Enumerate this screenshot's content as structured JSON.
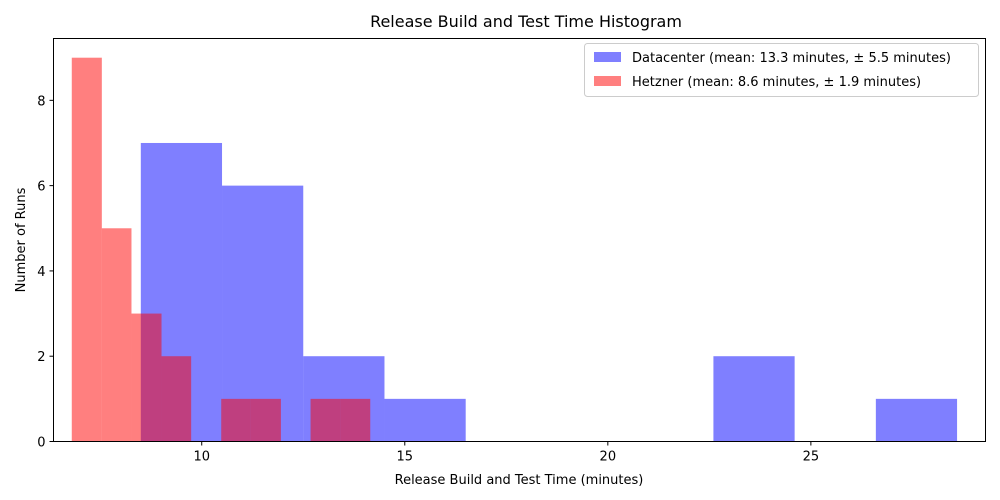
{
  "chart_data": {
    "type": "bar",
    "title": "Release Build and Test Time Histogram",
    "xlabel": "Release Build and Test Time (minutes)",
    "ylabel": "Number of Runs",
    "xlim": [
      6.35,
      29.3
    ],
    "ylim": [
      0,
      9.45
    ],
    "xticks": [
      10,
      15,
      20,
      25
    ],
    "yticks": [
      0,
      2,
      4,
      6,
      8
    ],
    "grid": false,
    "legend_position": "top-right",
    "series": [
      {
        "name": "Datacenter (mean: 13.3 minutes, ± 5.5 minutes)",
        "color": "#0000ff",
        "opacity": 0.5,
        "bins": [
          {
            "x0": 8.5,
            "x1": 10.5,
            "count": 7
          },
          {
            "x0": 10.5,
            "x1": 12.5,
            "count": 6
          },
          {
            "x0": 12.5,
            "x1": 14.5,
            "count": 2
          },
          {
            "x0": 14.5,
            "x1": 16.5,
            "count": 1
          },
          {
            "x0": 16.5,
            "x1": 18.5,
            "count": 0
          },
          {
            "x0": 18.5,
            "x1": 20.6,
            "count": 0
          },
          {
            "x0": 20.6,
            "x1": 22.6,
            "count": 0
          },
          {
            "x0": 22.6,
            "x1": 24.6,
            "count": 2
          },
          {
            "x0": 24.6,
            "x1": 26.6,
            "count": 0
          },
          {
            "x0": 26.6,
            "x1": 28.6,
            "count": 1
          }
        ]
      },
      {
        "name": "Hetzner (mean: 8.6 minutes, ± 1.9 minutes)",
        "color": "#ff0000",
        "opacity": 0.5,
        "bins": [
          {
            "x0": 6.8,
            "x1": 7.54,
            "count": 9
          },
          {
            "x0": 7.54,
            "x1": 8.27,
            "count": 5
          },
          {
            "x0": 8.27,
            "x1": 9.01,
            "count": 3
          },
          {
            "x0": 9.01,
            "x1": 9.74,
            "count": 2
          },
          {
            "x0": 9.74,
            "x1": 10.48,
            "count": 0
          },
          {
            "x0": 10.48,
            "x1": 11.21,
            "count": 1
          },
          {
            "x0": 11.21,
            "x1": 11.95,
            "count": 1
          },
          {
            "x0": 11.95,
            "x1": 12.68,
            "count": 0
          },
          {
            "x0": 12.68,
            "x1": 13.42,
            "count": 1
          },
          {
            "x0": 13.42,
            "x1": 14.15,
            "count": 1
          }
        ]
      }
    ]
  }
}
